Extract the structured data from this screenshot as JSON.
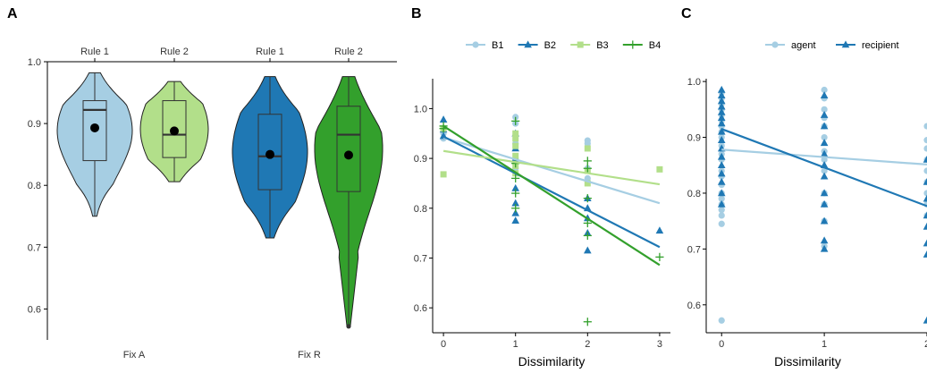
{
  "chart_data": [
    {
      "panel": "A",
      "type": "violin",
      "ylim": [
        0.55,
        1.0
      ],
      "y_ticks": [
        "0.6",
        "0.7",
        "0.8",
        "0.9",
        "1.0"
      ],
      "top_labels": [
        "Rule 1",
        "Rule 2",
        "Rule 1",
        "Rule 2"
      ],
      "bottom_labels": [
        "Fix A",
        "Fix R"
      ],
      "groups": [
        {
          "top": "Rule 1",
          "bottom": "Fix A",
          "color": "#a6cee3",
          "min": 0.75,
          "q1": 0.84,
          "median": 0.922,
          "q3": 0.937,
          "max": 0.982,
          "mean": 0.893
        },
        {
          "top": "Rule 2",
          "bottom": "Fix A",
          "color": "#b2df8a",
          "min": 0.806,
          "q1": 0.845,
          "median": 0.882,
          "q3": 0.937,
          "max": 0.968,
          "mean": 0.888
        },
        {
          "top": "Rule 1",
          "bottom": "Fix R",
          "color": "#1f78b4",
          "min": 0.715,
          "q1": 0.793,
          "median": 0.847,
          "q3": 0.915,
          "max": 0.976,
          "mean": 0.85
        },
        {
          "top": "Rule 2",
          "bottom": "Fix R",
          "color": "#33a02c",
          "min": 0.572,
          "q1": 0.79,
          "median": 0.882,
          "q3": 0.928,
          "max": 0.976,
          "mean": 0.849
        }
      ]
    },
    {
      "panel": "B",
      "type": "scatter",
      "xlabel": "Dissimilarity",
      "xlim": [
        -0.15,
        3.15
      ],
      "ylim": [
        0.55,
        1.06
      ],
      "x_ticks": [
        "0",
        "1",
        "2",
        "3"
      ],
      "y_ticks": [
        "0.6",
        "0.7",
        "0.8",
        "0.9",
        "1.0"
      ],
      "series": [
        {
          "name": "B1",
          "color": "#a6cee3",
          "marker": "circle",
          "points": [
            [
              0,
              0.94
            ],
            [
              0,
              0.95
            ],
            [
              1,
              0.983
            ],
            [
              1,
              0.97
            ],
            [
              1,
              0.93
            ],
            [
              1,
              0.9
            ],
            [
              1,
              0.88
            ],
            [
              2,
              0.936
            ],
            [
              2,
              0.93
            ],
            [
              2,
              0.88
            ],
            [
              2,
              0.86
            ]
          ],
          "fit": [
            0.942,
            0.81
          ]
        },
        {
          "name": "B2",
          "color": "#1f78b4",
          "marker": "triangle",
          "points": [
            [
              0,
              0.978
            ],
            [
              0,
              0.958
            ],
            [
              0,
              0.945
            ],
            [
              1,
              0.95
            ],
            [
              1,
              0.92
            ],
            [
              1,
              0.9
            ],
            [
              1,
              0.84
            ],
            [
              1,
              0.81
            ],
            [
              1,
              0.79
            ],
            [
              1,
              0.775
            ],
            [
              2,
              0.82
            ],
            [
              2,
              0.8
            ],
            [
              2,
              0.78
            ],
            [
              2,
              0.75
            ],
            [
              2,
              0.715
            ],
            [
              3,
              0.755
            ]
          ],
          "fit": [
            0.944,
            0.722
          ]
        },
        {
          "name": "B3",
          "color": "#b2df8a",
          "marker": "square",
          "points": [
            [
              0,
              0.868
            ],
            [
              0,
              0.96
            ],
            [
              1,
              0.95
            ],
            [
              1,
              0.94
            ],
            [
              1,
              0.925
            ],
            [
              1,
              0.905
            ],
            [
              1,
              0.885
            ],
            [
              1,
              0.87
            ],
            [
              2,
              0.92
            ],
            [
              2,
              0.875
            ],
            [
              2,
              0.85
            ],
            [
              3,
              0.878
            ]
          ],
          "fit": [
            0.915,
            0.848
          ]
        },
        {
          "name": "B4",
          "color": "#33a02c",
          "marker": "plus",
          "points": [
            [
              0,
              0.965
            ],
            [
              0,
              0.96
            ],
            [
              1,
              0.975
            ],
            [
              1,
              0.89
            ],
            [
              1,
              0.86
            ],
            [
              1,
              0.83
            ],
            [
              1,
              0.8
            ],
            [
              2,
              0.895
            ],
            [
              2,
              0.88
            ],
            [
              2,
              0.82
            ],
            [
              2,
              0.77
            ],
            [
              2,
              0.745
            ],
            [
              2,
              0.572
            ],
            [
              3,
              0.702
            ]
          ],
          "fit": [
            0.965,
            0.686
          ]
        }
      ]
    },
    {
      "panel": "C",
      "type": "scatter",
      "xlabel": "Dissimilarity",
      "xlim": [
        -0.15,
        2.0
      ],
      "ylim": [
        0.55,
        1.005
      ],
      "x_ticks": [
        "0",
        "1",
        "2"
      ],
      "y_ticks": [
        "0.6",
        "0.7",
        "0.8",
        "0.9",
        "1.0"
      ],
      "series": [
        {
          "name": "agent",
          "color": "#a6cee3",
          "marker": "circle",
          "points": [
            [
              0,
              0.98
            ],
            [
              0,
              0.97
            ],
            [
              0,
              0.96
            ],
            [
              0,
              0.95
            ],
            [
              0,
              0.94
            ],
            [
              0,
              0.93
            ],
            [
              0,
              0.92
            ],
            [
              0,
              0.91
            ],
            [
              0,
              0.9
            ],
            [
              0,
              0.885
            ],
            [
              0,
              0.87
            ],
            [
              0,
              0.86
            ],
            [
              0,
              0.84
            ],
            [
              0,
              0.83
            ],
            [
              0,
              0.815
            ],
            [
              0,
              0.8
            ],
            [
              0,
              0.79
            ],
            [
              0,
              0.78
            ],
            [
              0,
              0.77
            ],
            [
              0,
              0.76
            ],
            [
              0,
              0.745
            ],
            [
              0,
              0.572
            ],
            [
              1,
              0.985
            ],
            [
              1,
              0.97
            ],
            [
              1,
              0.95
            ],
            [
              1,
              0.935
            ],
            [
              1,
              0.92
            ],
            [
              1,
              0.9
            ],
            [
              1,
              0.875
            ],
            [
              1,
              0.86
            ],
            [
              1,
              0.84
            ],
            [
              1,
              0.8
            ],
            [
              1,
              0.78
            ],
            [
              1,
              0.75
            ],
            [
              1,
              0.705
            ],
            [
              2,
              0.92
            ],
            [
              2,
              0.895
            ],
            [
              2,
              0.88
            ],
            [
              2,
              0.86
            ],
            [
              2,
              0.84
            ],
            [
              2,
              0.82
            ],
            [
              2,
              0.8
            ],
            [
              2,
              0.78
            ],
            [
              2,
              0.76
            ]
          ],
          "fit": [
            0.878,
            0.85
          ]
        },
        {
          "name": "recipient",
          "color": "#1f78b4",
          "marker": "triangle",
          "points": [
            [
              0,
              0.985
            ],
            [
              0,
              0.975
            ],
            [
              0,
              0.965
            ],
            [
              0,
              0.955
            ],
            [
              0,
              0.945
            ],
            [
              0,
              0.935
            ],
            [
              0,
              0.925
            ],
            [
              0,
              0.91
            ],
            [
              0,
              0.895
            ],
            [
              0,
              0.88
            ],
            [
              0,
              0.865
            ],
            [
              0,
              0.85
            ],
            [
              0,
              0.835
            ],
            [
              0,
              0.82
            ],
            [
              0,
              0.8
            ],
            [
              0,
              0.78
            ],
            [
              1,
              0.975
            ],
            [
              1,
              0.94
            ],
            [
              1,
              0.92
            ],
            [
              1,
              0.89
            ],
            [
              1,
              0.87
            ],
            [
              1,
              0.85
            ],
            [
              1,
              0.83
            ],
            [
              1,
              0.8
            ],
            [
              1,
              0.78
            ],
            [
              1,
              0.75
            ],
            [
              1,
              0.715
            ],
            [
              1,
              0.7
            ],
            [
              2,
              0.86
            ],
            [
              2,
              0.82
            ],
            [
              2,
              0.79
            ],
            [
              2,
              0.76
            ],
            [
              2,
              0.74
            ],
            [
              2,
              0.71
            ],
            [
              2,
              0.69
            ],
            [
              2,
              0.572
            ]
          ],
          "fit": [
            0.915,
            0.77
          ]
        }
      ]
    }
  ],
  "panel_letters": {
    "a": "A",
    "b": "B",
    "c": "C"
  }
}
